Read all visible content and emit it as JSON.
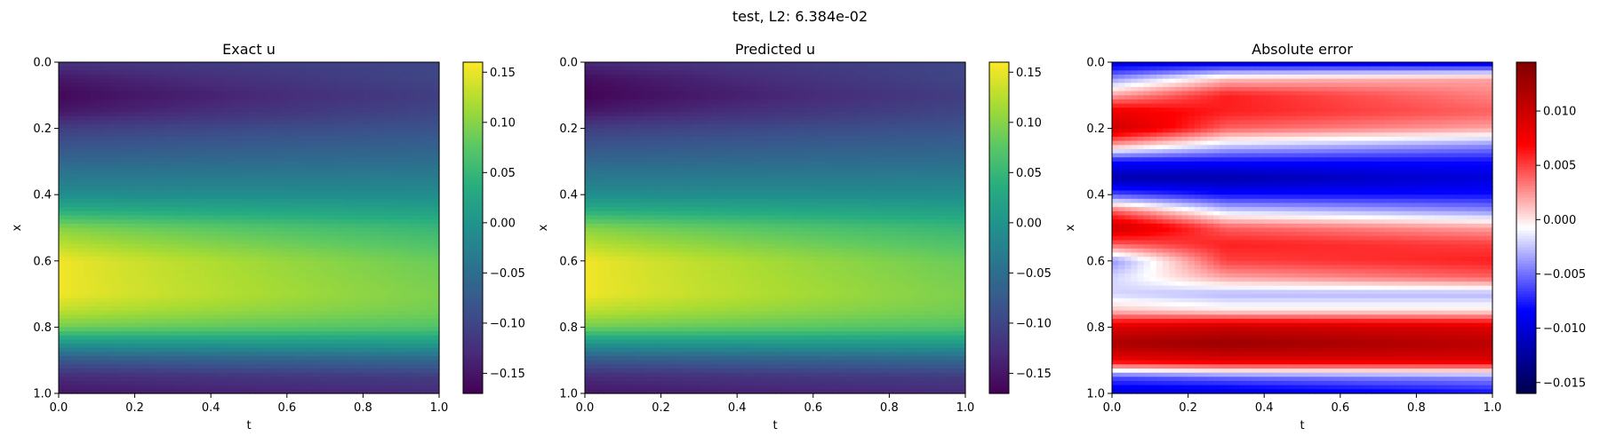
{
  "figure": {
    "suptitle": "test, L2: 6.384e-02"
  },
  "colormaps": {
    "viridis": [
      "#440154",
      "#472c7a",
      "#3b518b",
      "#2c718e",
      "#21908d",
      "#27ad81",
      "#5cc863",
      "#aadc32",
      "#fde725"
    ],
    "seismic": [
      "#00004c",
      "#0000ff",
      "#ffffff",
      "#ff0000",
      "#800000"
    ]
  },
  "chart_data": [
    {
      "type": "heatmap",
      "title": "Exact u",
      "xlabel": "t",
      "ylabel": "x",
      "xlim": [
        0,
        1
      ],
      "ylim": [
        1,
        0
      ],
      "xticks": [
        "0.0",
        "0.2",
        "0.4",
        "0.6",
        "0.8",
        "1.0"
      ],
      "yticks": [
        "0.0",
        "0.2",
        "0.4",
        "0.6",
        "0.8",
        "1.0"
      ],
      "colormap": "viridis",
      "colorbar_range": [
        -0.17,
        0.16
      ],
      "colorbar_ticks": [
        "0.15",
        "0.10",
        "0.05",
        "0.00",
        "−0.05",
        "−0.10",
        "−0.15"
      ],
      "field": {
        "x": [
          0.0,
          0.05,
          0.1,
          0.15,
          0.2,
          0.3,
          0.4,
          0.45,
          0.5,
          0.6,
          0.7,
          0.75,
          0.8,
          0.85,
          0.9,
          0.95,
          1.0
        ],
        "u_t0": [
          -0.12,
          -0.15,
          -0.165,
          -0.15,
          -0.11,
          -0.06,
          -0.01,
          0.04,
          0.1,
          0.155,
          0.155,
          0.13,
          0.09,
          0.0,
          -0.08,
          -0.13,
          -0.15
        ],
        "u_t1": [
          -0.1,
          -0.1,
          -0.11,
          -0.1,
          -0.085,
          -0.05,
          -0.01,
          0.02,
          0.05,
          0.085,
          0.095,
          0.09,
          0.07,
          0.01,
          -0.06,
          -0.11,
          -0.13
        ]
      }
    },
    {
      "type": "heatmap",
      "title": "Predicted u",
      "xlabel": "t",
      "ylabel": "x",
      "xlim": [
        0,
        1
      ],
      "ylim": [
        1,
        0
      ],
      "xticks": [
        "0.0",
        "0.2",
        "0.4",
        "0.6",
        "0.8",
        "1.0"
      ],
      "yticks": [
        "0.0",
        "0.2",
        "0.4",
        "0.6",
        "0.8",
        "1.0"
      ],
      "colormap": "viridis",
      "colorbar_range": [
        -0.17,
        0.16
      ],
      "colorbar_ticks": [
        "0.15",
        "0.10",
        "0.05",
        "0.00",
        "−0.05",
        "−0.10",
        "−0.15"
      ],
      "field": {
        "x": [
          0.0,
          0.05,
          0.1,
          0.15,
          0.2,
          0.3,
          0.4,
          0.45,
          0.5,
          0.6,
          0.7,
          0.75,
          0.8,
          0.85,
          0.9,
          0.95,
          1.0
        ],
        "u_t0": [
          -0.13,
          -0.16,
          -0.17,
          -0.15,
          -0.11,
          -0.06,
          -0.01,
          0.04,
          0.1,
          0.155,
          0.155,
          0.13,
          0.09,
          0.0,
          -0.08,
          -0.13,
          -0.15
        ],
        "u_t1": [
          -0.1,
          -0.1,
          -0.11,
          -0.1,
          -0.085,
          -0.05,
          -0.01,
          0.02,
          0.05,
          0.085,
          0.095,
          0.09,
          0.07,
          0.01,
          -0.06,
          -0.11,
          -0.13
        ]
      }
    },
    {
      "type": "heatmap",
      "title": "Absolute error",
      "xlabel": "t",
      "ylabel": "x",
      "xlim": [
        0,
        1
      ],
      "ylim": [
        1,
        0
      ],
      "xticks": [
        "0.0",
        "0.2",
        "0.4",
        "0.6",
        "0.8",
        "1.0"
      ],
      "yticks": [
        "0.0",
        "0.2",
        "0.4",
        "0.6",
        "0.8",
        "1.0"
      ],
      "colormap": "seismic",
      "colorbar_range": [
        -0.016,
        0.0145
      ],
      "colorbar_ticks": [
        "0.010",
        "0.005",
        "0.000",
        "−0.005",
        "−0.010",
        "−0.015"
      ],
      "field": {
        "x": [
          0.0,
          0.05,
          0.1,
          0.15,
          0.2,
          0.25,
          0.3,
          0.35,
          0.4,
          0.45,
          0.5,
          0.55,
          0.6,
          0.65,
          0.7,
          0.75,
          0.8,
          0.85,
          0.9,
          0.95,
          1.0
        ],
        "err_t0": [
          -0.01,
          -0.004,
          0.002,
          0.008,
          0.01,
          0.002,
          -0.008,
          -0.012,
          -0.006,
          0.004,
          0.01,
          0.004,
          -0.004,
          -0.002,
          -0.002,
          0.001,
          0.009,
          0.012,
          0.008,
          -0.006,
          -0.01
        ],
        "err_t03": [
          -0.01,
          0.001,
          0.006,
          0.006,
          0.004,
          -0.002,
          -0.008,
          -0.012,
          -0.008,
          -0.002,
          0.004,
          0.006,
          0.005,
          0.002,
          -0.003,
          0.0,
          0.01,
          0.013,
          0.009,
          -0.005,
          -0.01
        ],
        "err_t1": [
          -0.01,
          0.002,
          0.003,
          0.004,
          0.002,
          -0.004,
          -0.008,
          -0.01,
          -0.008,
          -0.004,
          0.002,
          0.005,
          0.006,
          0.004,
          -0.003,
          0.0,
          0.009,
          0.011,
          0.009,
          -0.004,
          -0.008
        ]
      }
    }
  ]
}
